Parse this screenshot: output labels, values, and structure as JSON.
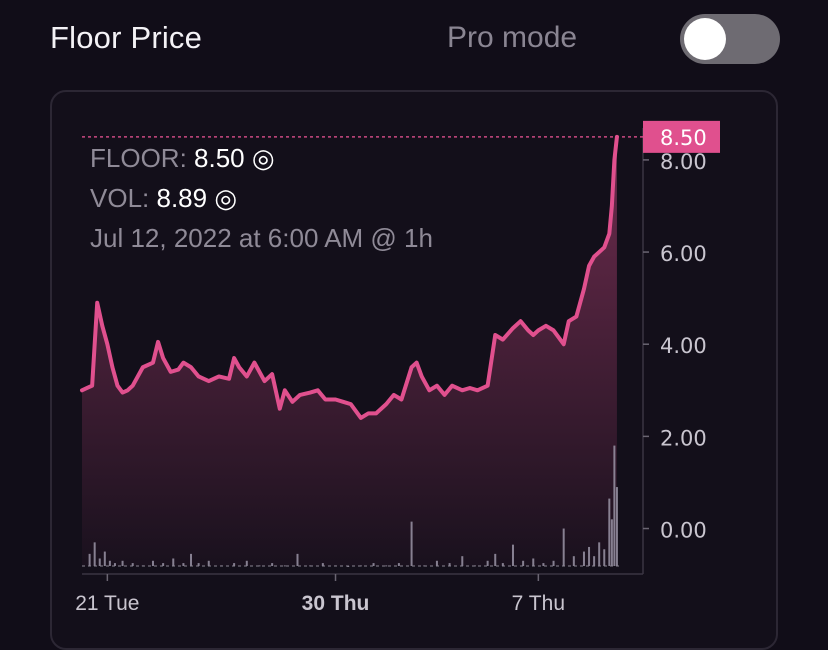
{
  "header": {
    "title": "Floor Price",
    "pro_mode_label": "Pro mode",
    "pro_mode_on": false
  },
  "tooltip": {
    "floor_label": "FLOOR:",
    "floor_value": "8.50",
    "vol_label": "VOL:",
    "vol_value": "8.89",
    "currency_glyph": "◎",
    "timestamp": "Jul 12, 2022 at 6:00 AM @ 1h"
  },
  "colors": {
    "accent": "#e0508e",
    "volume_bar": "#9a94a6",
    "background": "#110d18"
  },
  "chart_data": {
    "type": "line",
    "ylim": [
      -0.9,
      9.3
    ],
    "y_ticks": [
      0,
      2,
      4,
      6,
      8
    ],
    "y_tick_labels": [
      "0.00",
      "2.00",
      "4.00",
      "6.00",
      "8.00"
    ],
    "x_ticks": [
      {
        "label": "21 Tue",
        "x": 2,
        "bold": false
      },
      {
        "label": "30 Thu",
        "x": 11,
        "bold": true
      },
      {
        "label": "7 Thu",
        "x": 19,
        "bold": false
      }
    ],
    "xlim": [
      1,
      22.3
    ],
    "current_price_label": "8.50",
    "current_price": 8.5,
    "series": [
      {
        "type": "area-line",
        "x": [
          1,
          1.2,
          1.4,
          1.6,
          1.8,
          2,
          2.2,
          2.4,
          2.6,
          2.8,
          3,
          3.4,
          3.8,
          4,
          4.2,
          4.5,
          4.8,
          5,
          5.3,
          5.6,
          6,
          6.4,
          6.8,
          7,
          7.2,
          7.5,
          7.8,
          8,
          8.2,
          8.5,
          8.8,
          9,
          9.3,
          9.6,
          10,
          10.3,
          10.6,
          11,
          11.3,
          11.6,
          12,
          12.3,
          12.6,
          13,
          13.3,
          13.6,
          14,
          14.2,
          14.4,
          14.7,
          15,
          15.3,
          15.6,
          16,
          16.3,
          16.6,
          17,
          17.3,
          17.6,
          18,
          18.3,
          18.6,
          18.8,
          19,
          19.3,
          19.6,
          20,
          20.2,
          20.5,
          20.8,
          21,
          21.2,
          21.4,
          21.6,
          21.8,
          21.9,
          22,
          22.1
        ],
        "values": [
          3.0,
          3.05,
          3.1,
          4.9,
          4.4,
          4.0,
          3.5,
          3.1,
          2.95,
          3.0,
          3.1,
          3.5,
          3.6,
          4.05,
          3.7,
          3.4,
          3.45,
          3.6,
          3.5,
          3.3,
          3.2,
          3.3,
          3.25,
          3.7,
          3.5,
          3.3,
          3.6,
          3.4,
          3.2,
          3.35,
          2.6,
          3.0,
          2.75,
          2.9,
          2.95,
          3.0,
          2.8,
          2.8,
          2.75,
          2.7,
          2.4,
          2.5,
          2.5,
          2.7,
          2.9,
          2.8,
          3.5,
          3.6,
          3.3,
          3.0,
          3.1,
          2.9,
          3.1,
          3.0,
          3.05,
          3.0,
          3.1,
          4.2,
          4.1,
          4.35,
          4.5,
          4.3,
          4.2,
          4.3,
          4.4,
          4.3,
          4.0,
          4.5,
          4.6,
          5.2,
          5.7,
          5.9,
          6.0,
          6.1,
          6.4,
          7.0,
          8.0,
          8.5
        ]
      },
      {
        "type": "volume-bars",
        "x": [
          1.3,
          1.5,
          1.7,
          1.9,
          2.1,
          2.3,
          2.6,
          3.0,
          3.4,
          3.8,
          4.2,
          4.6,
          5.0,
          5.3,
          5.6,
          6.0,
          6.5,
          7.0,
          7.5,
          8.0,
          8.5,
          9.0,
          9.5,
          10.0,
          10.5,
          11.0,
          11.5,
          12.0,
          12.5,
          13.0,
          13.5,
          14.0,
          14.5,
          15.0,
          15.5,
          16.0,
          16.5,
          17.0,
          17.3,
          17.6,
          18.0,
          18.4,
          18.8,
          19.2,
          19.6,
          20.0,
          20.4,
          20.8,
          21.0,
          21.2,
          21.4,
          21.6,
          21.8,
          21.9,
          22.0,
          22.1
        ],
        "values": [
          0.35,
          0.6,
          0.25,
          0.4,
          0.2,
          0.15,
          0.2,
          0.15,
          0.1,
          0.2,
          0.15,
          0.25,
          0.15,
          0.35,
          0.15,
          0.2,
          0.1,
          0.15,
          0.2,
          0.1,
          0.15,
          0.1,
          0.35,
          0.1,
          0.15,
          0.1,
          0.05,
          0.1,
          0.15,
          0.1,
          0.15,
          1.05,
          0.1,
          0.2,
          0.15,
          0.3,
          0.1,
          0.2,
          0.35,
          0.15,
          0.55,
          0.2,
          0.25,
          0.15,
          0.2,
          0.9,
          0.3,
          0.4,
          0.5,
          0.3,
          0.6,
          0.45,
          1.55,
          1.1,
          2.7,
          1.8
        ]
      }
    ]
  }
}
